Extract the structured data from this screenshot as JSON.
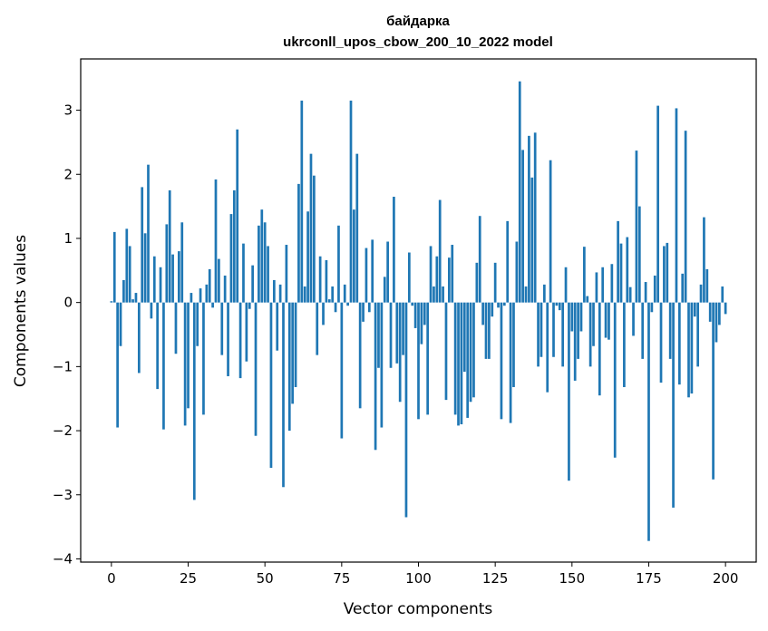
{
  "chart_data": {
    "type": "bar",
    "title": "байдарка",
    "subtitle": "ukrconll_upos_cbow_200_10_2022 model",
    "xlabel": "Vector components",
    "ylabel": "Components values",
    "xlim": [
      -10,
      210
    ],
    "ylim": [
      -4.05,
      3.8
    ],
    "x_ticks": [
      0,
      25,
      50,
      75,
      100,
      125,
      150,
      175,
      200
    ],
    "y_ticks": [
      -4,
      -3,
      -2,
      -1,
      0,
      1,
      2,
      3
    ],
    "grid": false,
    "bar_color": "#1f77b4",
    "values": [
      0.02,
      1.1,
      -1.95,
      -0.68,
      0.35,
      1.15,
      0.88,
      0.05,
      0.15,
      -1.1,
      1.8,
      1.08,
      2.15,
      -0.25,
      0.72,
      -1.35,
      0.55,
      -1.98,
      1.22,
      1.75,
      0.75,
      -0.8,
      0.8,
      1.25,
      -1.92,
      -1.65,
      0.15,
      -3.08,
      -0.68,
      0.22,
      -1.75,
      0.28,
      0.52,
      -0.08,
      1.92,
      0.68,
      -0.82,
      0.42,
      -1.15,
      1.38,
      1.75,
      2.7,
      -1.18,
      0.92,
      -0.92,
      -0.1,
      0.58,
      -2.08,
      1.2,
      1.45,
      1.25,
      0.88,
      -2.58,
      0.35,
      -0.75,
      0.28,
      -2.88,
      0.9,
      -2.0,
      -1.58,
      -1.32,
      1.85,
      3.15,
      0.25,
      1.42,
      2.32,
      1.98,
      -0.82,
      0.72,
      -0.35,
      0.66,
      0.05,
      0.25,
      -0.15,
      1.2,
      -2.12,
      0.28,
      -0.05,
      3.15,
      1.45,
      2.32,
      -1.65,
      -0.3,
      0.85,
      -0.15,
      0.98,
      -2.3,
      -1.02,
      -1.95,
      0.4,
      0.95,
      -1.02,
      1.65,
      -0.95,
      -1.55,
      -0.82,
      -3.35,
      0.78,
      -0.05,
      -0.4,
      -1.82,
      -0.65,
      -0.35,
      -1.75,
      0.88,
      0.25,
      0.72,
      1.6,
      0.25,
      -1.52,
      0.7,
      0.9,
      -1.75,
      -1.92,
      -1.9,
      -1.08,
      -1.8,
      -1.55,
      -1.48,
      0.62,
      1.35,
      -0.35,
      -0.88,
      -0.88,
      -0.22,
      0.62,
      -0.08,
      -1.82,
      -0.05,
      1.27,
      -1.88,
      -1.32,
      0.95,
      3.45,
      2.38,
      0.25,
      2.6,
      1.95,
      2.65,
      -1.0,
      -0.85,
      0.28,
      -1.4,
      2.22,
      -0.85,
      -0.05,
      -0.12,
      -1.0,
      0.55,
      -2.78,
      -0.45,
      -1.22,
      -0.88,
      -0.45,
      0.87,
      0.1,
      -1.0,
      -0.68,
      0.47,
      -1.45,
      0.55,
      -0.55,
      -0.58,
      0.6,
      -2.42,
      1.27,
      0.92,
      -1.32,
      1.02,
      0.24,
      -0.52,
      2.37,
      1.5,
      -0.88,
      0.32,
      -3.72,
      -0.15,
      0.42,
      3.07,
      -1.25,
      0.88,
      0.93,
      -0.88,
      -3.2,
      3.03,
      -1.28,
      0.45,
      2.68,
      -1.48,
      -1.42,
      -0.22,
      -1.0,
      0.28,
      1.33,
      0.52,
      -0.3,
      -2.76,
      -0.62,
      -0.35,
      0.25,
      -0.18
    ]
  }
}
